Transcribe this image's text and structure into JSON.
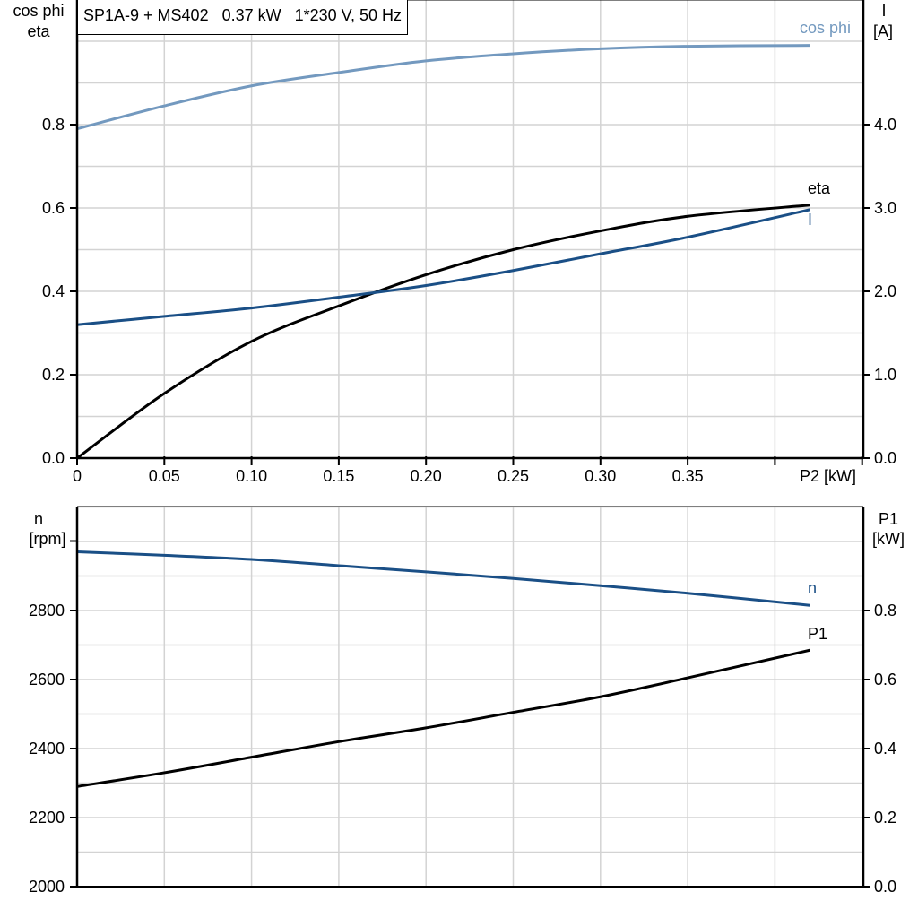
{
  "title": "SP1A-9 + MS402   0.37 kW   1*230 V, 50 Hz",
  "colors": {
    "cos_phi": "#7399bf",
    "eta": "#000000",
    "I": "#1a4f86",
    "n": "#1a4f86",
    "P1": "#000000",
    "grid": "#d3d3d3"
  },
  "top_chart": {
    "left_axis_label": [
      "cos phi",
      "eta"
    ],
    "right_axis_label": [
      "I",
      "[A]"
    ],
    "x_axis_label": "P2 [kW]",
    "x_ticks": [
      "0",
      "0.05",
      "0.10",
      "0.15",
      "0.20",
      "0.25",
      "0.30",
      "0.35"
    ],
    "left_ticks": [
      "0.0",
      "0.2",
      "0.4",
      "0.6",
      "0.8"
    ],
    "right_ticks": [
      "0.0",
      "1.0",
      "2.0",
      "3.0",
      "4.0"
    ],
    "curve_labels": {
      "cos_phi": "cos phi",
      "eta": "eta",
      "I": "I"
    }
  },
  "bottom_chart": {
    "left_axis_label": [
      "n",
      "[rpm]"
    ],
    "right_axis_label": [
      "P1",
      "[kW]"
    ],
    "left_ticks": [
      "2000",
      "2200",
      "2400",
      "2600",
      "2800"
    ],
    "right_ticks": [
      "0.0",
      "0.2",
      "0.4",
      "0.6",
      "0.8"
    ],
    "curve_labels": {
      "n": "n",
      "P1": "P1"
    }
  },
  "chart_data": [
    {
      "type": "line",
      "title": "SP1A-9 + MS402   0.37 kW   1*230 V, 50 Hz",
      "xlabel": "P2 [kW]",
      "ylabel": "cos phi / eta",
      "y2label": "I [A]",
      "xlim": [
        0,
        0.45
      ],
      "ylim": [
        0,
        1.1
      ],
      "y2lim": [
        0,
        5.5
      ],
      "grid": true,
      "x": [
        0,
        0.05,
        0.1,
        0.15,
        0.2,
        0.25,
        0.3,
        0.35,
        0.42
      ],
      "series": [
        {
          "name": "cos phi",
          "axis": "left",
          "values": [
            0.79,
            0.845,
            0.893,
            0.925,
            0.953,
            0.97,
            0.982,
            0.988,
            0.99
          ]
        },
        {
          "name": "eta",
          "axis": "left",
          "values": [
            0.0,
            0.155,
            0.28,
            0.365,
            0.44,
            0.5,
            0.545,
            0.58,
            0.607
          ]
        },
        {
          "name": "I",
          "axis": "right",
          "values": [
            1.6,
            1.7,
            1.8,
            1.93,
            2.07,
            2.25,
            2.45,
            2.65,
            2.98
          ]
        }
      ]
    },
    {
      "type": "line",
      "xlabel": "P2 [kW]",
      "ylabel": "n [rpm]",
      "y2label": "P1 [kW]",
      "xlim": [
        0,
        0.45
      ],
      "ylim": [
        2000,
        3100
      ],
      "y2lim": [
        0,
        1.1
      ],
      "grid": true,
      "x": [
        0,
        0.05,
        0.1,
        0.15,
        0.2,
        0.25,
        0.3,
        0.35,
        0.42
      ],
      "series": [
        {
          "name": "n",
          "axis": "left",
          "values": [
            2970,
            2960,
            2948,
            2930,
            2912,
            2893,
            2872,
            2850,
            2815
          ]
        },
        {
          "name": "P1",
          "axis": "right",
          "values": [
            0.29,
            0.33,
            0.375,
            0.42,
            0.46,
            0.505,
            0.55,
            0.605,
            0.685
          ]
        }
      ]
    }
  ]
}
